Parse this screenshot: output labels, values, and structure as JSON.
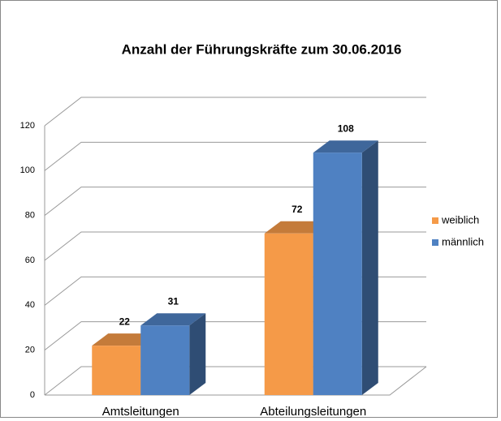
{
  "chart_data": {
    "type": "bar3d",
    "title": "Anzahl der Führungskräfte zum 30.06.2016",
    "categories": [
      "Amtsleitungen",
      "Abteilungsleitungen"
    ],
    "series": [
      {
        "name": "weiblich",
        "color": "#f59a48",
        "values": [
          22,
          72
        ]
      },
      {
        "name": "männlich",
        "color": "#4f81c2",
        "values": [
          31,
          108
        ]
      }
    ],
    "ylim": [
      0,
      120
    ],
    "yticks": [
      0,
      20,
      40,
      60,
      80,
      100,
      120
    ],
    "grid": true,
    "legend": "right"
  }
}
